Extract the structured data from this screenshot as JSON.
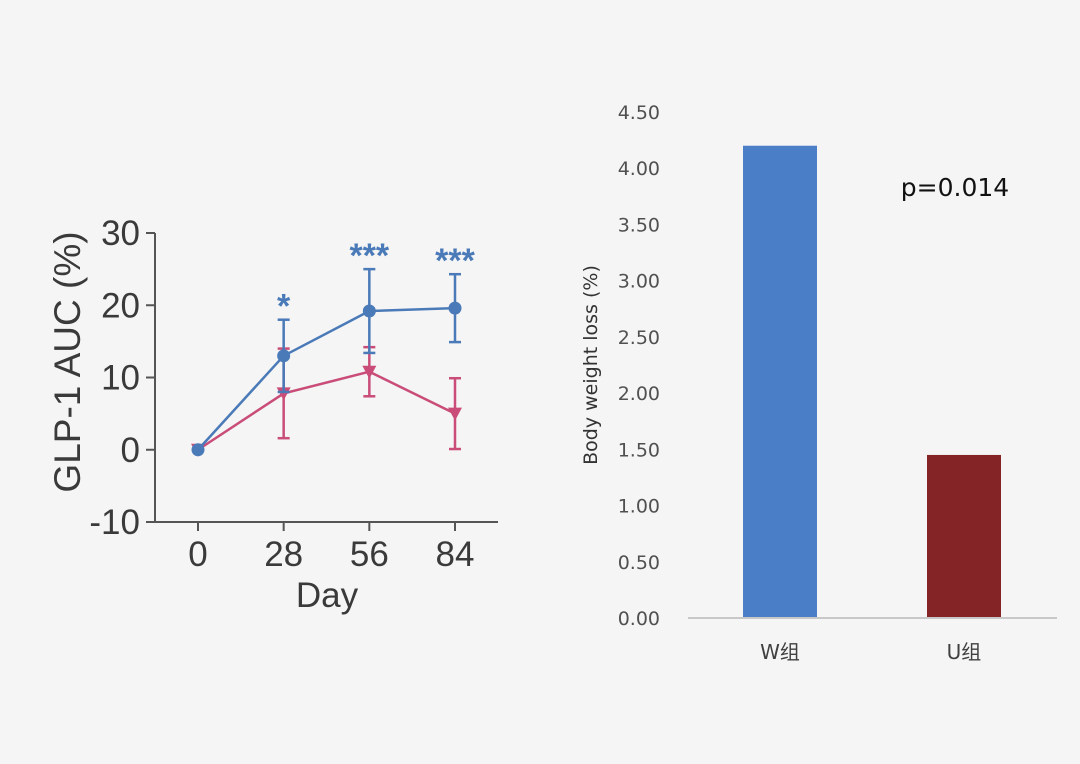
{
  "chart_data": [
    {
      "type": "line",
      "xlabel": "Day",
      "ylabel": "GLP-1 AUC (%)",
      "x": [
        0,
        28,
        56,
        84
      ],
      "xticks": [
        "0",
        "28",
        "56",
        "84"
      ],
      "yticks": [
        "-10",
        "0",
        "10",
        "20",
        "30"
      ],
      "ylim": [
        -10,
        30
      ],
      "grid": false,
      "series": [
        {
          "color": "#4a7ab8",
          "marker": "circle",
          "values": [
            0,
            13,
            19.2,
            19.6
          ],
          "error": [
            0,
            5,
            5.8,
            4.7
          ]
        },
        {
          "color": "#c94d78",
          "marker": "triangle-down",
          "values": [
            0,
            7.8,
            10.8,
            5.0
          ],
          "error": [
            0,
            6.2,
            3.4,
            4.9
          ]
        }
      ],
      "annotations": [
        {
          "x": 28,
          "text": "*",
          "color": "#4a7ab8"
        },
        {
          "x": 56,
          "text": "***",
          "color": "#4a7ab8"
        },
        {
          "x": 84,
          "text": "***",
          "color": "#4a7ab8"
        }
      ]
    },
    {
      "type": "bar",
      "ylabel": "Body weight loss (%)",
      "categories": [
        "W组",
        "U组"
      ],
      "values": [
        4.2,
        1.45
      ],
      "colors": [
        "#4a7fc7",
        "#852426"
      ],
      "yticks": [
        "0.00",
        "0.50",
        "1.00",
        "1.50",
        "2.00",
        "2.50",
        "3.00",
        "3.50",
        "4.00",
        "4.50"
      ],
      "ylim": [
        0,
        4.5
      ],
      "grid": false,
      "annotations": [
        {
          "text": "p=0.014"
        }
      ]
    }
  ]
}
